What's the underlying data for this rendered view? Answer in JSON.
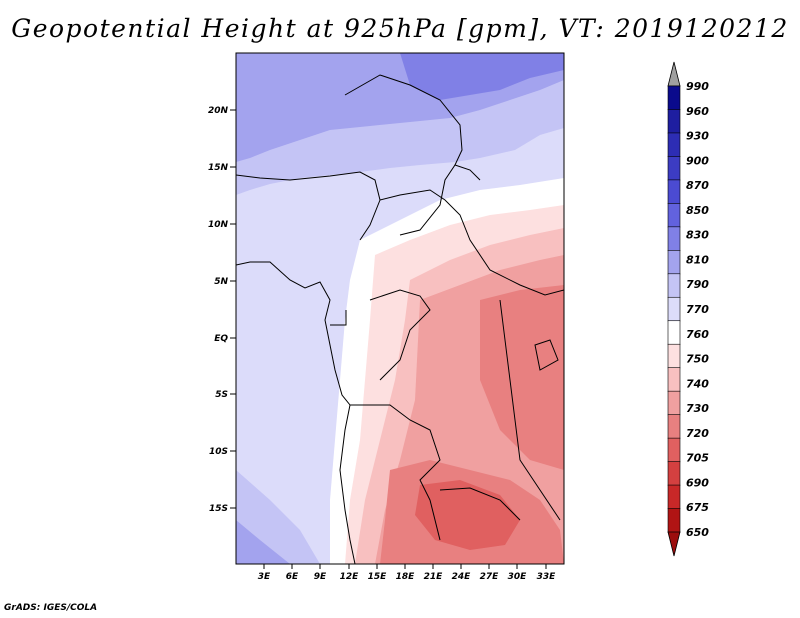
{
  "title": "Geopotential Height at 925hPa [gpm], VT: 2019120212",
  "credit": "GrADS: IGES/COLA",
  "map": {
    "lat_labels": [
      "20N",
      "15N",
      "10N",
      "5N",
      "EQ",
      "5S",
      "10S",
      "15S"
    ],
    "lon_labels": [
      "3E",
      "6E",
      "9E",
      "12E",
      "15E",
      "18E",
      "21E",
      "24E",
      "27E",
      "30E",
      "33E"
    ]
  },
  "colorbar": {
    "levels": [
      "990",
      "960",
      "930",
      "900",
      "870",
      "850",
      "830",
      "810",
      "790",
      "770",
      "760",
      "750",
      "740",
      "730",
      "720",
      "705",
      "690",
      "675",
      "650"
    ],
    "colors": {
      "top_arrow": "#a0a0a0",
      "bands": [
        "#0a0a8c",
        "#1e1ea0",
        "#2d2db4",
        "#3c3cc3",
        "#4b4bd2",
        "#6262de",
        "#8080e6",
        "#a3a3ee",
        "#c4c4f5",
        "#dcdcfa",
        "#ffffff",
        "#fde0e0",
        "#f8c0c0",
        "#f0a0a0",
        "#e88080",
        "#e06060",
        "#d44040",
        "#c82828",
        "#b01414"
      ],
      "bottom_arrow": "#9c0d0d"
    }
  }
}
